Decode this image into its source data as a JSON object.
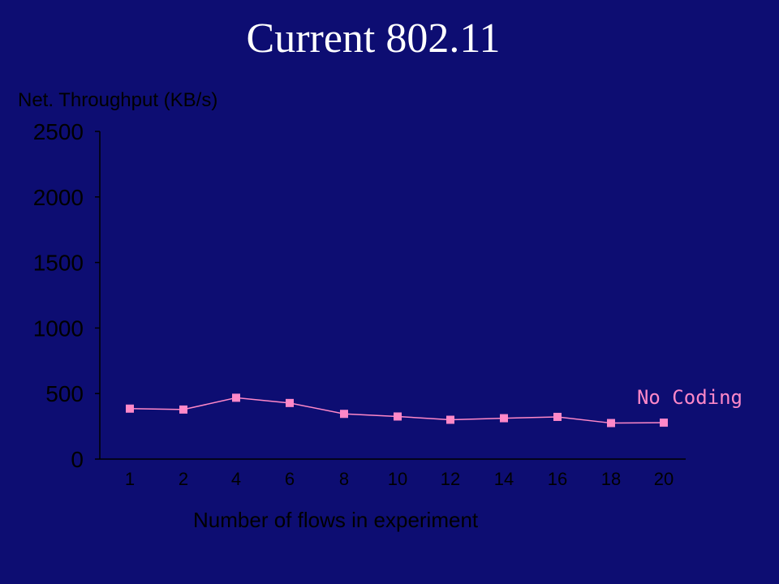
{
  "title": "Current 802.11",
  "chart_data": {
    "type": "line",
    "ylabel": "Net. Throughput (KB/s)",
    "xlabel": "Number of flows in experiment",
    "categories": [
      "1",
      "2",
      "4",
      "6",
      "8",
      "10",
      "12",
      "14",
      "16",
      "18",
      "20"
    ],
    "yticks": [
      "0",
      "500",
      "1000",
      "1500",
      "2000",
      "2500"
    ],
    "ylim": [
      0,
      2500
    ],
    "grid": false,
    "series": [
      {
        "name": "No Coding",
        "values": [
          385,
          378,
          468,
          428,
          345,
          325,
          300,
          312,
          322,
          275,
          278
        ],
        "color": "#ff88c8"
      }
    ],
    "axis_color": "#000000"
  }
}
